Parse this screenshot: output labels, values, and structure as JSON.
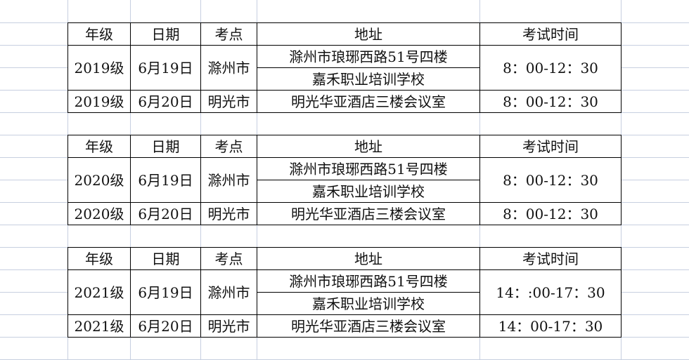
{
  "sheet": {
    "gridline_color": "#c7cfe0",
    "border_color": "#000000",
    "tables": [
      {
        "headers": [
          "年级",
          "日期",
          "考点",
          "地址",
          "考试时间"
        ],
        "rows": [
          {
            "grade": "2019级",
            "date": "6月19日",
            "site": "滁州市",
            "address": [
              "滁州市琅琊西路51号四楼",
              "嘉禾职业培训学校"
            ],
            "time": "8：00-12：30"
          },
          {
            "grade": "2019级",
            "date": "6月20日",
            "site": "明光市",
            "address": [
              "明光华亚酒店三楼会议室"
            ],
            "time": "8：00-12：30"
          }
        ]
      },
      {
        "headers": [
          "年级",
          "日期",
          "考点",
          "地址",
          "考试时间"
        ],
        "rows": [
          {
            "grade": "2020级",
            "date": "6月19日",
            "site": "滁州市",
            "address": [
              "滁州市琅琊西路51号四楼",
              "嘉禾职业培训学校"
            ],
            "time": "8：00-12：30"
          },
          {
            "grade": "2020级",
            "date": "6月20日",
            "site": "明光市",
            "address": [
              "明光华亚酒店三楼会议室"
            ],
            "time": "8：00-12：30"
          }
        ]
      },
      {
        "headers": [
          "年级",
          "日期",
          "考点",
          "地址",
          "考试时间"
        ],
        "rows": [
          {
            "grade": "2021级",
            "date": "6月19日",
            "site": "滁州市",
            "address": [
              "滁州市琅琊西路51号四楼",
              "嘉禾职业培训学校"
            ],
            "time": "14：:00-17：30"
          },
          {
            "grade": "2021级",
            "date": "6月20日",
            "site": "明光市",
            "address": [
              "明光华亚酒店三楼会议室"
            ],
            "time": "14：00-17：30"
          }
        ]
      }
    ]
  }
}
